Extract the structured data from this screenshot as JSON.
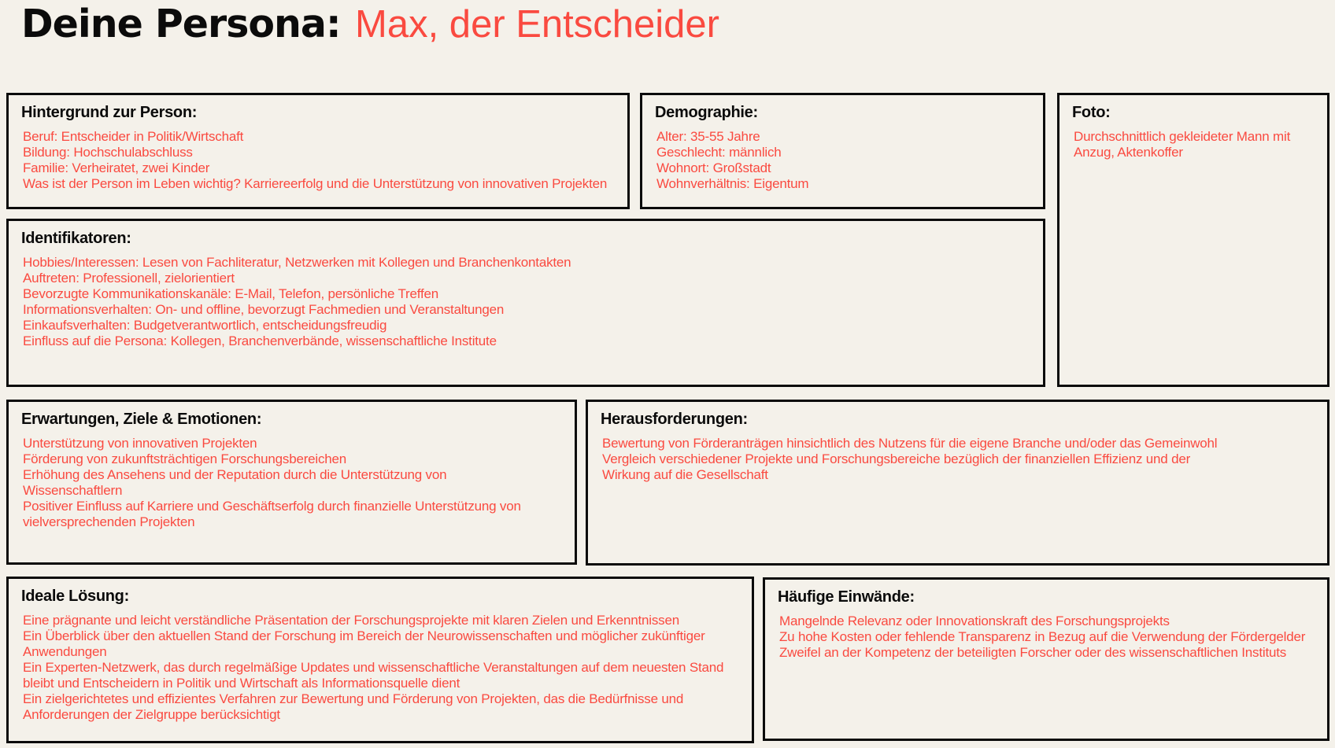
{
  "title": {
    "label": "Deine Persona:",
    "value": "Max, der Entscheider"
  },
  "colors": {
    "background": "#f4f1ea",
    "accent_red": "#fa4a40",
    "heading_black": "#0b0b0b",
    "box_border": "#0b0b0b"
  },
  "sections": [
    {
      "id": "hintergrund",
      "heading": "Hintergrund zur Person:",
      "items": [
        "Beruf: Entscheider in Politik/Wirtschaft",
        "Bildung: Hochschulabschluss",
        "Familie: Verheiratet, zwei Kinder",
        "Was ist der Person im Leben wichtig? Karriereerfolg und die Unterstützung von innovativen Projekten"
      ]
    },
    {
      "id": "demographie",
      "heading": "Demographie:",
      "items": [
        "Alter: 35-55 Jahre",
        "Geschlecht: männlich",
        "Wohnort: Großstadt",
        "Wohnverhältnis: Eigentum"
      ]
    },
    {
      "id": "foto",
      "heading": "Foto:",
      "items": [
        "Durchschnittlich gekleideter Mann mit Anzug, Aktenkoffer"
      ]
    },
    {
      "id": "identifikatoren",
      "heading": "Identifikatoren:",
      "items": [
        "Hobbies/Interessen: Lesen von Fachliteratur, Netzwerken mit Kollegen und Branchenkontakten",
        "Auftreten: Professionell, zielorientiert",
        "Bevorzugte Kommunikationskanäle: E-Mail, Telefon, persönliche Treffen",
        "Informationsverhalten: On- und offline, bevorzugt Fachmedien und Veranstaltungen",
        "Einkaufsverhalten: Budgetverantwortlich, entscheidungsfreudig",
        "Einfluss auf die Persona: Kollegen, Branchenverbände, wissenschaftliche Institute"
      ]
    },
    {
      "id": "erwartungen",
      "heading": "Erwartungen, Ziele & Emotionen:",
      "items": [
        "Unterstützung von innovativen Projekten",
        "Förderung von zukunftsträchtigen Forschungsbereichen",
        "Erhöhung des Ansehens und der Reputation durch die Unterstützung von Wissenschaftlern",
        "Positiver Einfluss auf Karriere und Geschäftserfolg durch finanzielle Unterstützung von vielversprechenden Projekten"
      ]
    },
    {
      "id": "herausforderungen",
      "heading": "Herausforderungen:",
      "items": [
        "Bewertung von Förderanträgen hinsichtlich des Nutzens für die eigene Branche und/oder das Gemeinwohl",
        "Vergleich verschiedener Projekte und Forschungsbereiche bezüglich der finanziellen Effizienz und der Wirkung auf die Gesellschaft"
      ]
    },
    {
      "id": "ideale_loesung",
      "heading": "Ideale Lösung:",
      "items": [
        "Eine prägnante und leicht verständliche Präsentation der Forschungsprojekte mit klaren Zielen und Erkenntnissen",
        "Ein Überblick über den aktuellen Stand der Forschung im Bereich der Neurowissenschaften und möglicher zukünftiger Anwendungen",
        "Ein Experten-Netzwerk, das durch regelmäßige Updates und wissenschaftliche Veranstaltungen auf dem neuesten Stand bleibt und Entscheidern in Politik und Wirtschaft als Informationsquelle dient",
        "Ein zielgerichtetes und effizientes Verfahren zur Bewertung und Förderung von Projekten, das die Bedürfnisse und Anforderungen der Zielgruppe berücksichtigt"
      ]
    },
    {
      "id": "haeufige_einwaende",
      "heading": "Häufige Einwände:",
      "items": [
        "Mangelnde Relevanz oder Innovationskraft des Forschungsprojekts",
        "Zu hohe Kosten oder fehlende Transparenz in Bezug auf die Verwendung der Fördergelder",
        "Zweifel an der Kompetenz der beteiligten Forscher oder des wissenschaftlichen Instituts"
      ]
    }
  ]
}
